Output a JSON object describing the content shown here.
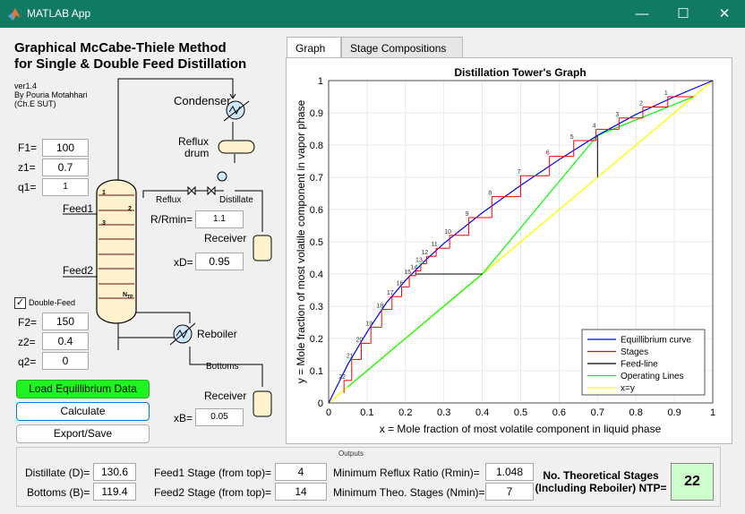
{
  "window": {
    "title": "MATLAB App"
  },
  "header": {
    "title_line1": "Graphical McCabe-Thiele Method",
    "title_line2": "for Single & Double Feed Distillation"
  },
  "version": {
    "line1": "ver1.4",
    "line2": "By Pouria Motahhari",
    "line3": "(Ch.E SUT)"
  },
  "feed1": {
    "F_label": "F1=",
    "F": "100",
    "z_label": "z1=",
    "z": "0.7",
    "q_label": "q1=",
    "q": "1"
  },
  "double_feed": {
    "label": "Double-Feed",
    "checked": "✓"
  },
  "feed2": {
    "F_label": "F2=",
    "F": "150",
    "z_label": "z2=",
    "z": "0.4",
    "q_label": "q2=",
    "q": "0"
  },
  "buttons": {
    "load": "Load Equillibrium Data",
    "calculate": "Calculate",
    "export": "Export/Save"
  },
  "diagram": {
    "condenser": "Condenser",
    "reflux_drum_1": "Reflux",
    "reflux_drum_2": "drum",
    "reflux": "Reflux",
    "distillate": "Distillate",
    "feed1": "Feed1",
    "feed2": "Feed2",
    "stage1": "1",
    "stage2": "2",
    "stage3": "3",
    "stage_ntp": "N",
    "stage_ntp_sub": "TP",
    "receiver_top": "Receiver",
    "receiver_bottom": "Receiver",
    "reboiler": "Reboiler",
    "bottoms": "Bottoms"
  },
  "params": {
    "rr_label": "R/Rmin=",
    "rr": "1.1",
    "xd_label": "xD=",
    "xd": "0.95",
    "xb_label": "xB=",
    "xb": "0.05"
  },
  "tabs": [
    {
      "label": "Graph"
    },
    {
      "label": "Stage Compositions"
    }
  ],
  "outputs": {
    "title": "Outputs",
    "distillate_label": "Distillate (D)=",
    "distillate": "130.6",
    "bottoms_label": "Bottoms (B)=",
    "bottoms": "119.4",
    "feed1_stage_label": "Feed1 Stage (from top)=",
    "feed1_stage": "4",
    "feed2_stage_label": "Feed2 Stage (from top)=",
    "feed2_stage": "14",
    "rmin_label": "Minimum Reflux Ratio (Rmin)=",
    "rmin": "1.048",
    "nmin_label": "Minimum Theo. Stages (Nmin)=",
    "nmin": "7",
    "ntp_label_1": "No. Theoretical Stages",
    "ntp_label_2": "(Including Reboiler) NTP=",
    "ntp": "22"
  },
  "chart_data": {
    "type": "line",
    "title": "Distillation Tower's Graph",
    "xlabel": "x = Mole  fraction of most volatile component in liquid phase",
    "ylabel": "y = Mole fraction of most volatile component in vapor phase",
    "xlim": [
      0,
      1
    ],
    "ylim": [
      0,
      1
    ],
    "xticks": [
      "0",
      "0.1",
      "0.2",
      "0.3",
      "0.4",
      "0.5",
      "0.6",
      "0.7",
      "0.8",
      "0.9",
      "1"
    ],
    "yticks": [
      "0",
      "0.1",
      "0.2",
      "0.3",
      "0.4",
      "0.5",
      "0.6",
      "0.7",
      "0.8",
      "0.9",
      "1"
    ],
    "grid": true,
    "legend_position": "bottom-right",
    "legend": [
      "Equillibrium curve",
      "Stages",
      "Feed-line",
      "Operating Lines",
      "x=y"
    ],
    "colors": {
      "equilibrium": "#0000ff",
      "stages": "#ff0000",
      "feed": "#000000",
      "operating": "#00ff00",
      "diagonal": "#ffff00"
    },
    "equilibrium": {
      "x": [
        0,
        0.05,
        0.1,
        0.15,
        0.2,
        0.25,
        0.3,
        0.4,
        0.5,
        0.6,
        0.7,
        0.8,
        0.9,
        1
      ],
      "y": [
        0,
        0.12,
        0.22,
        0.31,
        0.38,
        0.44,
        0.495,
        0.59,
        0.675,
        0.755,
        0.83,
        0.895,
        0.95,
        1
      ]
    },
    "operating_lines": [
      {
        "x": [
          0.95,
          0.7
        ],
        "y": [
          0.95,
          0.83
        ]
      },
      {
        "x": [
          0.7,
          0.4
        ],
        "y": [
          0.83,
          0.4
        ]
      },
      {
        "x": [
          0.4,
          0.05
        ],
        "y": [
          0.4,
          0.05
        ]
      }
    ],
    "feed_lines": [
      {
        "x": [
          0.7,
          0.7
        ],
        "y": [
          0.7,
          0.83
        ]
      },
      {
        "x": [
          0.4,
          0.225
        ],
        "y": [
          0.4,
          0.4
        ]
      }
    ],
    "diagonal": {
      "x": [
        0,
        1
      ],
      "y": [
        0,
        1
      ]
    },
    "stages": {
      "labels": [
        "1",
        "2",
        "3",
        "4",
        "5",
        "6",
        "7",
        "8",
        "9",
        "10",
        "11",
        "12",
        "13",
        "14",
        "15",
        "16",
        "17",
        "18",
        "19",
        "20",
        "21",
        "22"
      ],
      "corner_x": [
        0.883,
        0.818,
        0.756,
        0.696,
        0.638,
        0.575,
        0.5,
        0.425,
        0.365,
        0.315,
        0.28,
        0.255,
        0.24,
        0.227,
        0.21,
        0.19,
        0.165,
        0.138,
        0.11,
        0.085,
        0.06,
        0.04
      ],
      "corner_y": [
        0.95,
        0.918,
        0.884,
        0.849,
        0.814,
        0.765,
        0.705,
        0.64,
        0.575,
        0.52,
        0.48,
        0.455,
        0.432,
        0.41,
        0.395,
        0.36,
        0.33,
        0.29,
        0.235,
        0.185,
        0.135,
        0.07
      ]
    }
  }
}
